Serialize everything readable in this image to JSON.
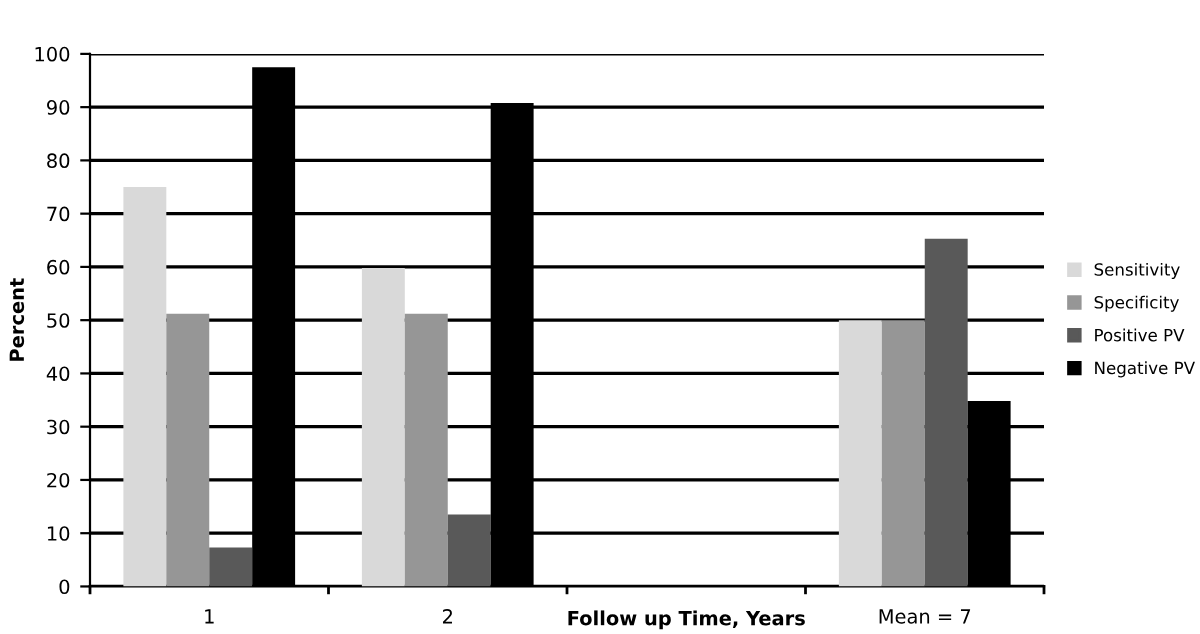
{
  "chart_data": {
    "type": "bar",
    "xlabel": "Follow up Time, Years",
    "ylabel": "Percent",
    "categories": [
      "1",
      "2",
      null,
      "Mean = 7"
    ],
    "series": [
      {
        "name": "Sensitivity",
        "color": "#d9d9d9",
        "values": [
          75,
          59.8,
          null,
          50
        ]
      },
      {
        "name": "Specificity",
        "color": "#969696",
        "values": [
          51.2,
          51.2,
          null,
          50
        ]
      },
      {
        "name": "Positive PV",
        "color": "#595959",
        "values": [
          7.3,
          13.5,
          null,
          65.3
        ]
      },
      {
        "name": "Negative PV",
        "color": "#000000",
        "values": [
          97.5,
          90.8,
          null,
          34.8
        ]
      }
    ],
    "ylim": [
      0,
      100
    ],
    "yticks": [
      0,
      10,
      20,
      30,
      40,
      50,
      60,
      70,
      80,
      90,
      100
    ],
    "grid": "y",
    "legend": "right"
  }
}
